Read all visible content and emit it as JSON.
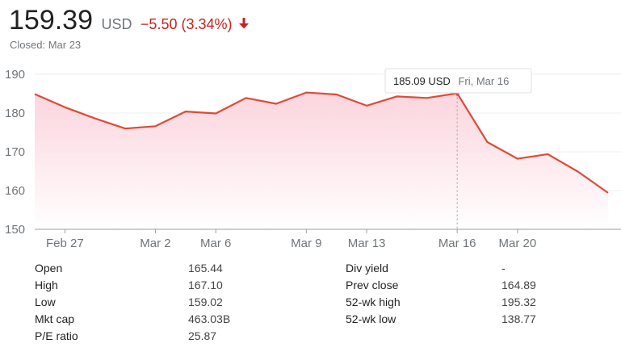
{
  "quote": {
    "price": "159.39",
    "currency": "USD",
    "change": "−5.50 (3.34%)",
    "closed": "Closed: Mar 23",
    "down_color": "#c5221f"
  },
  "tooltip": {
    "value": "185.09 USD",
    "date": "Fri, Mar 16"
  },
  "stats": {
    "left": [
      {
        "label": "Open",
        "value": "165.44"
      },
      {
        "label": "High",
        "value": "167.10"
      },
      {
        "label": "Low",
        "value": "159.02"
      },
      {
        "label": "Mkt cap",
        "value": "463.03B"
      },
      {
        "label": "P/E ratio",
        "value": "25.87"
      }
    ],
    "right": [
      {
        "label": "Div yield",
        "value": "-"
      },
      {
        "label": "Prev close",
        "value": "164.89"
      },
      {
        "label": "52-wk high",
        "value": "195.32"
      },
      {
        "label": "52-wk low",
        "value": "138.77"
      }
    ]
  },
  "chart_data": {
    "type": "area",
    "line_color": "#dd4b39",
    "fill_color": "#fbd3dc",
    "ylim": [
      150,
      190
    ],
    "yticks": [
      150,
      160,
      170,
      180,
      190
    ],
    "grid": true,
    "x_tick_labels": [
      {
        "label": "Feb 27",
        "index": 1
      },
      {
        "label": "Mar 2",
        "index": 4
      },
      {
        "label": "Mar 6",
        "index": 6
      },
      {
        "label": "Mar 9",
        "index": 9
      },
      {
        "label": "Mar 13",
        "index": 11
      },
      {
        "label": "Mar 16",
        "index": 14
      },
      {
        "label": "Mar 20",
        "index": 16
      }
    ],
    "values": [
      184.9,
      181.5,
      178.6,
      176.0,
      176.6,
      180.4,
      179.9,
      183.9,
      182.4,
      185.3,
      184.8,
      181.9,
      184.3,
      183.9,
      185.09,
      172.5,
      168.2,
      169.4,
      164.9,
      159.39
    ],
    "highlight_index": 14
  }
}
